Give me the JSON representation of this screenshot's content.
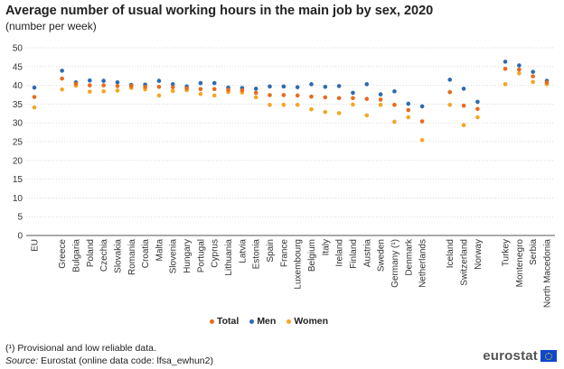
{
  "header": {
    "title": "Average number of usual working hours in the main job by sex, 2020",
    "subtitle": "(number  per week)"
  },
  "legend": [
    {
      "label": "Total",
      "color": "#e86a1d"
    },
    {
      "label": "Men",
      "color": "#2e6bb0"
    },
    {
      "label": "Women",
      "color": "#f5a623"
    }
  ],
  "footer": {
    "note": "(¹) Provisional and low reliable data.",
    "source_label": "Source:",
    "source_text": " Eurostat (online data code: lfsa_ewhun2)",
    "logo_text": "eurostat"
  },
  "chart_data": {
    "type": "scatter",
    "title": "Average number of usual working hours in the main job by sex, 2020",
    "subtitle": "(number  per week)",
    "ylim": [
      0,
      50
    ],
    "yticks": [
      0,
      5,
      10,
      15,
      20,
      25,
      30,
      35,
      40,
      45,
      50
    ],
    "grid": true,
    "legend_position": "bottom",
    "categories": [
      "EU",
      "Greece",
      "Bulgaria",
      "Poland",
      "Czechia",
      "Slovakia",
      "Romania",
      "Croatia",
      "Malta",
      "Slovenia",
      "Hungary",
      "Portugal",
      "Cyprus",
      "Lithuania",
      "Latvia",
      "Estonia",
      "Spain",
      "France",
      "Luxembourg",
      "Belgium",
      "Italy",
      "Ireland",
      "Finland",
      "Austria",
      "Sweden",
      "Germany (¹)",
      "Denmark",
      "Netherlands",
      "Iceland",
      "Switzerland",
      "Norway",
      "Turkey",
      "Montenegro",
      "Serbia",
      "North Macedonia"
    ],
    "groups": [
      [
        0,
        0
      ],
      [
        1,
        27
      ],
      [
        28,
        30
      ],
      [
        31,
        34
      ]
    ],
    "series": [
      {
        "name": "Total",
        "color": "#e86a1d",
        "values": [
          36.9,
          41.8,
          40.4,
          40.0,
          40.0,
          39.8,
          39.8,
          39.6,
          39.6,
          39.5,
          39.2,
          39.0,
          39.0,
          38.8,
          38.7,
          38.0,
          37.4,
          37.4,
          37.3,
          37.0,
          36.8,
          36.6,
          36.6,
          36.4,
          36.2,
          34.8,
          33.4,
          30.4,
          38.2,
          34.6,
          33.7,
          44.4,
          44.2,
          42.4,
          40.8
        ]
      },
      {
        "name": "Men",
        "color": "#2e6bb0",
        "values": [
          39.4,
          43.9,
          40.8,
          41.3,
          41.2,
          40.8,
          40.1,
          40.2,
          41.2,
          40.3,
          39.7,
          40.6,
          40.6,
          39.4,
          39.3,
          39.1,
          39.7,
          39.7,
          39.5,
          40.3,
          39.6,
          39.8,
          38.0,
          40.3,
          37.6,
          38.4,
          35.1,
          34.4,
          41.5,
          39.1,
          35.6,
          46.3,
          45.3,
          43.6,
          41.2
        ]
      },
      {
        "name": "Women",
        "color": "#f5a623",
        "values": [
          34.1,
          38.9,
          39.9,
          38.3,
          38.4,
          38.6,
          39.3,
          38.9,
          37.3,
          38.5,
          38.7,
          37.7,
          37.3,
          38.2,
          38.1,
          36.8,
          34.8,
          34.8,
          34.8,
          33.6,
          32.9,
          32.6,
          34.9,
          32.0,
          34.8,
          30.3,
          31.5,
          25.4,
          34.8,
          29.4,
          31.5,
          40.3,
          43.2,
          40.9,
          40.3
        ]
      }
    ]
  }
}
